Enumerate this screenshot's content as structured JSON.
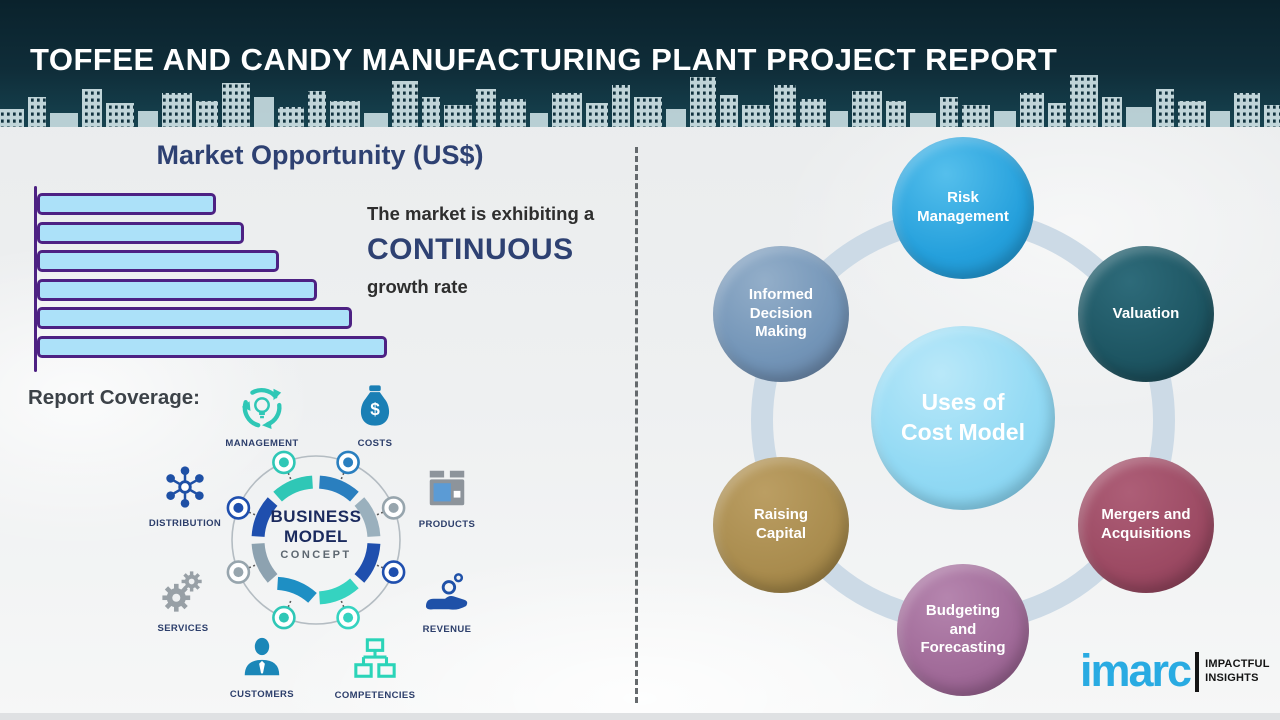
{
  "header": {
    "title": "TOFFEE AND CANDY MANUFACTURING PLANT PROJECT REPORT"
  },
  "market": {
    "title": "Market Opportunity (US$)",
    "caption_line1": "The market is exhibiting a",
    "caption_emphasis": "CONTINUOUS",
    "caption_line2": "growth rate"
  },
  "chart_data": {
    "type": "bar",
    "orientation": "horizontal",
    "title": "Market Opportunity (US$)",
    "categories": [
      "",
      "",
      "",
      "",
      "",
      ""
    ],
    "values": [
      51,
      59,
      69,
      80,
      90,
      100
    ],
    "unit": "relative bar length, % of longest bar (no axis labels shown)",
    "bar_fill": "#ace1f9",
    "bar_border": "#4d2183",
    "axis_labels_visible": false,
    "grid": false,
    "legend": false
  },
  "report_coverage": {
    "title": "Report Coverage:",
    "items": [
      {
        "label": "MANAGEMENT",
        "icon": "management-cycle-icon",
        "color": "#2fc7b6"
      },
      {
        "label": "COSTS",
        "icon": "money-bag-icon",
        "color": "#1a7fb5"
      },
      {
        "label": "DISTRIBUTION",
        "icon": "network-icon",
        "color": "#1e50a5"
      },
      {
        "label": "PRODUCTS",
        "icon": "package-icon",
        "color": "#8d949b"
      },
      {
        "label": "SERVICES",
        "icon": "gears-icon",
        "color": "#98a0a6"
      },
      {
        "label": "REVENUE",
        "icon": "hand-coins-icon",
        "color": "#1f51a8"
      },
      {
        "label": "CUSTOMERS",
        "icon": "person-icon",
        "color": "#1b87b8"
      },
      {
        "label": "COMPETENCIES",
        "icon": "org-chart-icon",
        "color": "#2bd4b8"
      }
    ],
    "center": {
      "line1": "BUSINESS",
      "line2": "MODEL",
      "line3": "CONCEPT"
    }
  },
  "cost_model": {
    "center_line1": "Uses of",
    "center_line2": "Cost Model",
    "center_color": "#93daf4",
    "ring_color": "#ccdae6",
    "items": [
      {
        "label": "Risk Management",
        "color": "#25a0dc"
      },
      {
        "label": "Valuation",
        "color": "#1d5562"
      },
      {
        "label": "Informed Decision Making",
        "color": "#7294b7"
      },
      {
        "label": "Mergers and Acquisitions",
        "color": "#9c4a63"
      },
      {
        "label": "Raising Capital",
        "color": "#a98c4e"
      },
      {
        "label": "Budgeting and Forecasting",
        "color": "#a06a98"
      }
    ]
  },
  "logo": {
    "wordmark": "imarc",
    "tagline_line1": "IMPACTFUL",
    "tagline_line2": "INSIGHTS",
    "color": "#29abe2"
  }
}
